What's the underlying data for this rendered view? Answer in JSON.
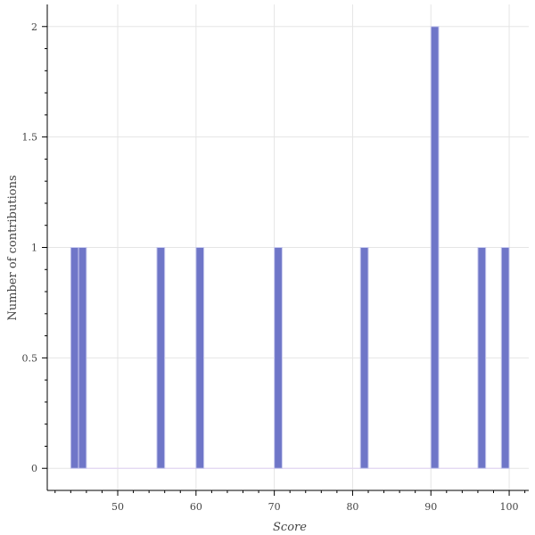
{
  "chart_data": {
    "type": "bar",
    "title": "",
    "xlabel": "Score",
    "ylabel": "Number of contributions",
    "bin_width": 1,
    "bins": [
      {
        "left": 44,
        "right": 45,
        "value": 1
      },
      {
        "left": 45,
        "right": 46,
        "value": 1
      },
      {
        "left": 55,
        "right": 56,
        "value": 1
      },
      {
        "left": 60,
        "right": 61,
        "value": 1
      },
      {
        "left": 70,
        "right": 71,
        "value": 1
      },
      {
        "left": 81,
        "right": 82,
        "value": 1
      },
      {
        "left": 90,
        "right": 91,
        "value": 2
      },
      {
        "left": 96,
        "right": 97,
        "value": 1
      },
      {
        "left": 99,
        "right": 100,
        "value": 1
      }
    ],
    "xlim": [
      41.0,
      102.5
    ],
    "ylim": [
      -0.1,
      2.1
    ],
    "xticks": [
      50,
      60,
      70,
      80,
      90,
      100
    ],
    "xtick_labels": [
      "50",
      "60",
      "70",
      "80",
      "90",
      "100"
    ],
    "yticks": [
      0,
      0.5,
      1,
      1.5,
      2
    ],
    "ytick_labels": [
      "0",
      "0.5",
      "1",
      "1.5",
      "2"
    ],
    "grid": true,
    "colors": {
      "bar_fill": "#6f76c8",
      "bar_edge": "#c9cbee",
      "baseline": "#e3d6f3"
    }
  }
}
